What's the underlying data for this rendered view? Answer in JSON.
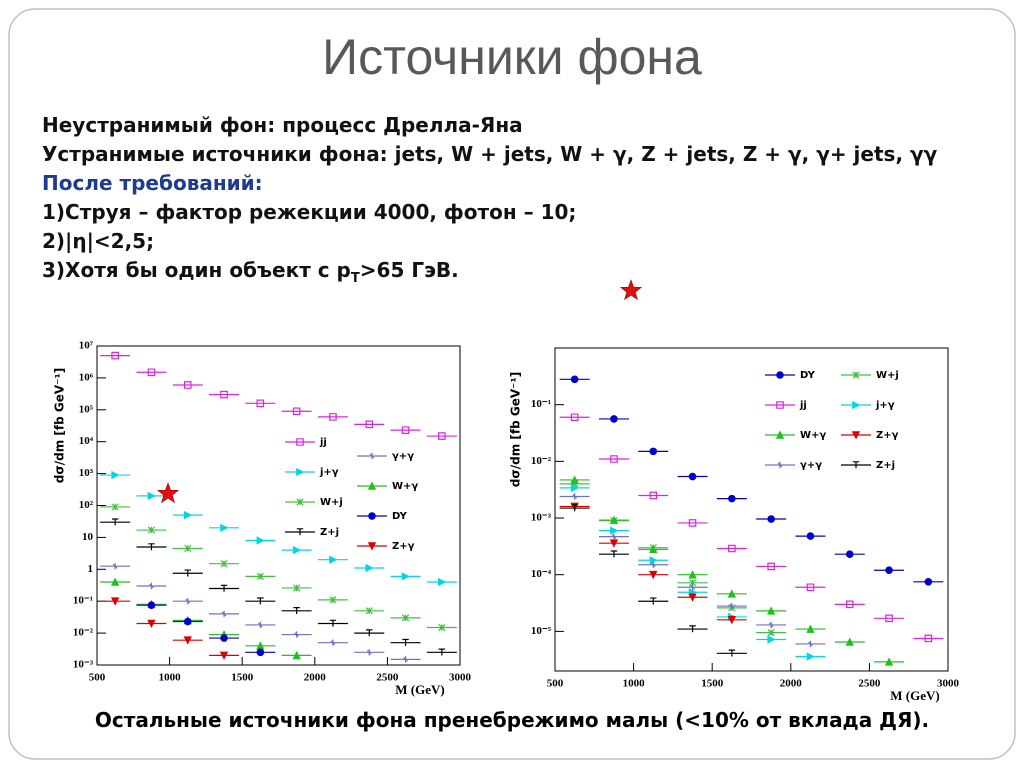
{
  "title": "Источники фона",
  "lines": [
    "Неустранимый фон: процесс Дрелла-Яна",
    "Устранимые источники фона: jets, W + jets, W + γ, Z + jets, Z + γ, γ+ jets, γγ",
    "После требований:",
    "1)Струя – фактор режекции 4000, фотон – 10;",
    "2)|η|<2,5;",
    [
      "3)Хотя бы один объект с p",
      "T",
      ">65 ГэВ."
    ]
  ],
  "footer": "Остальные источники фона пренебрежимо малы (<10% от вклада ДЯ).",
  "chart_data": [
    {
      "type": "scatter",
      "xlabel": "M (GeV)",
      "ylabel": "dσ/dm [fb GeV⁻¹]",
      "log_y": true,
      "xlim": [
        500,
        3000
      ],
      "xticks": [
        500,
        1000,
        1500,
        2000,
        2500,
        3000
      ],
      "ylim": [
        0.001,
        10000000
      ],
      "yticks": [
        {
          "value": 0.001,
          "label": "10⁻³"
        },
        {
          "value": 0.01,
          "label": "10⁻²"
        },
        {
          "value": 0.1,
          "label": "10⁻¹"
        },
        1,
        10,
        {
          "value": 100,
          "label": "10²"
        },
        {
          "value": 1000,
          "label": "10³"
        },
        {
          "value": 10000,
          "label": "10⁴"
        },
        {
          "value": 100000,
          "label": "10⁵"
        },
        {
          "value": 1000000,
          "label": "10⁶"
        },
        {
          "value": 10000000,
          "label": "10⁷"
        }
      ],
      "series": [
        {
          "name": "jj",
          "color": "#e020e0",
          "marker": "square-open",
          "x": [
            625,
            875,
            1125,
            1375,
            1625,
            1875,
            2125,
            2375,
            2625,
            2875
          ],
          "values": [
            5000000,
            1500000,
            600000,
            300000,
            160000,
            90000,
            60000,
            35000,
            23000,
            15000
          ]
        },
        {
          "name": "j+γ",
          "color": "#00d8e0",
          "marker": "triangle-right",
          "x": [
            625,
            875,
            1125,
            1375,
            1625,
            1875,
            2125,
            2375,
            2625,
            2875
          ],
          "values": [
            900,
            200,
            50,
            20,
            8,
            4,
            2,
            1.1,
            0.6,
            0.4
          ]
        },
        {
          "name": "W+j",
          "color": "#40c040",
          "marker": "star",
          "x": [
            625,
            875,
            1125,
            1375,
            1625,
            1875,
            2125,
            2375,
            2625,
            2875
          ],
          "values": [
            90,
            17,
            4.5,
            1.5,
            0.6,
            0.26,
            0.11,
            0.05,
            0.03,
            0.015
          ]
        },
        {
          "name": "Z+j",
          "color": "#000000",
          "marker": "cross",
          "x": [
            625,
            875,
            1125,
            1375,
            1625,
            1875,
            2125,
            2375,
            2625,
            2875
          ],
          "values": [
            30,
            5,
            0.75,
            0.25,
            0.1,
            0.05,
            0.02,
            0.01,
            0.005,
            0.0025
          ]
        },
        {
          "name": "γ+γ",
          "color": "#7070c8",
          "marker": "plus",
          "x": [
            625,
            875,
            1125,
            1375,
            1625,
            1875,
            2125,
            2375,
            2625
          ],
          "values": [
            1.25,
            0.3,
            0.1,
            0.04,
            0.018,
            0.009,
            0.005,
            0.0025,
            0.0015
          ]
        },
        {
          "name": "W+γ",
          "color": "#20c020",
          "marker": "triangle",
          "x": [
            625,
            875,
            1125,
            1375,
            1625,
            1875
          ],
          "values": [
            0.4,
            0.08,
            0.025,
            0.009,
            0.004,
            0.002
          ]
        },
        {
          "name": "DY",
          "color": "#0000cc",
          "marker": "circle",
          "x": [
            875,
            1125,
            1375,
            1625
          ],
          "values": [
            0.075,
            0.023,
            0.007,
            0.0025
          ]
        },
        {
          "name": "Z+γ",
          "color": "#dd0000",
          "marker": "triangle-down",
          "x": [
            625,
            875,
            1125,
            1375
          ],
          "values": [
            0.1,
            0.02,
            0.006,
            0.002
          ]
        }
      ]
    },
    {
      "type": "scatter",
      "xlabel": "M (GeV)",
      "ylabel": "dσ/dm [fb GeV⁻¹]",
      "log_y": true,
      "xlim": [
        500,
        3000
      ],
      "xticks": [
        500,
        1000,
        1500,
        2000,
        2500,
        3000
      ],
      "ylim": [
        2e-06,
        1
      ],
      "yticks": [
        {
          "value": 1e-05,
          "label": "10⁻⁵"
        },
        {
          "value": 0.0001,
          "label": "10⁻⁴"
        },
        {
          "value": 0.001,
          "label": "10⁻³"
        },
        {
          "value": 0.01,
          "label": "10⁻²"
        },
        {
          "value": 0.1,
          "label": "10⁻¹"
        }
      ],
      "series": [
        {
          "name": "DY",
          "color": "#0000cc",
          "marker": "circle",
          "x": [
            625,
            875,
            1125,
            1375,
            1625,
            1875,
            2125,
            2375,
            2625,
            2875
          ],
          "values": [
            0.28,
            0.056,
            0.015,
            0.0054,
            0.0022,
            0.00096,
            0.00048,
            0.00023,
            0.00012,
            7.5e-05
          ]
        },
        {
          "name": "W+j",
          "color": "#40c040",
          "marker": "star",
          "x": [
            625,
            875,
            1125,
            1375,
            1625,
            1875
          ],
          "values": [
            0.004,
            0.0009,
            0.0003,
            7.2e-05,
            2.6e-05,
            9.5e-06
          ]
        },
        {
          "name": "jj",
          "color": "#e020e0",
          "marker": "square-open",
          "x": [
            625,
            875,
            1125,
            1375,
            1625,
            1875,
            2125,
            2375,
            2625,
            2875
          ],
          "values": [
            0.06,
            0.011,
            0.0025,
            0.00082,
            0.00029,
            0.00014,
            6e-05,
            3e-05,
            1.7e-05,
            7.5e-06
          ]
        },
        {
          "name": "j+γ",
          "color": "#00d8e0",
          "marker": "triangle-right",
          "x": [
            625,
            875,
            1125,
            1375,
            1625,
            1875,
            2125
          ],
          "values": [
            0.0034,
            0.0006,
            0.00018,
            4.9e-05,
            1.8e-05,
            7.2e-06,
            3.6e-06
          ]
        },
        {
          "name": "W+γ",
          "color": "#20c020",
          "marker": "triangle",
          "x": [
            625,
            875,
            1125,
            1375,
            1625,
            1875,
            2125,
            2375,
            2625
          ],
          "values": [
            0.0047,
            0.00092,
            0.00028,
            0.0001,
            4.6e-05,
            2.3e-05,
            1.1e-05,
            6.5e-06,
            2.9e-06
          ]
        },
        {
          "name": "Z+γ",
          "color": "#dd0000",
          "marker": "triangle-down",
          "x": [
            625,
            875,
            1125,
            1375,
            1625
          ],
          "values": [
            0.0016,
            0.00036,
            0.0001,
            4e-05,
            1.6e-05
          ]
        },
        {
          "name": "γ+γ",
          "color": "#7070c8",
          "marker": "plus",
          "x": [
            625,
            875,
            1125,
            1375,
            1625,
            1875,
            2125
          ],
          "values": [
            0.0024,
            0.00047,
            0.00015,
            6e-05,
            2.8e-05,
            1.3e-05,
            6e-06
          ]
        },
        {
          "name": "Z+j",
          "color": "#000000",
          "marker": "cross",
          "x": [
            625,
            875,
            1125,
            1375,
            1625
          ],
          "values": [
            0.0015,
            0.00023,
            3.4e-05,
            1.1e-05,
            4.1e-06
          ]
        }
      ]
    }
  ]
}
